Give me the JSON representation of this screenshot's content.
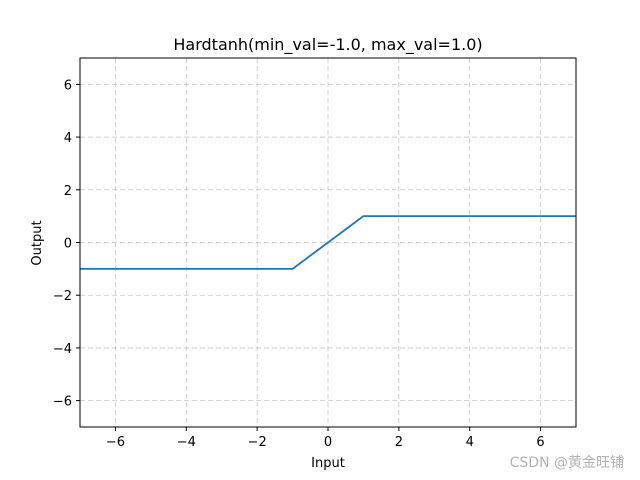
{
  "chart_data": {
    "type": "line",
    "title": "Hardtanh(min_val=-1.0, max_val=1.0)",
    "xlabel": "Input",
    "ylabel": "Output",
    "xlim": [
      -7,
      7
    ],
    "ylim": [
      -7,
      7
    ],
    "xticks": [
      -6,
      -4,
      -2,
      0,
      2,
      4,
      6
    ],
    "yticks": [
      -6,
      -4,
      -2,
      0,
      2,
      4,
      6
    ],
    "tick_labels_x": [
      "−6",
      "−4",
      "−2",
      "0",
      "2",
      "4",
      "6"
    ],
    "tick_labels_y": [
      "−6",
      "−4",
      "−2",
      "0",
      "2",
      "4",
      "6"
    ],
    "grid": true,
    "series": [
      {
        "x": [
          -7,
          -1,
          1,
          7
        ],
        "y": [
          -1,
          -1,
          1,
          1
        ],
        "color": "#1f77b4"
      }
    ]
  },
  "watermark": "CSDN @黄金旺铺",
  "colors": {
    "line": "#1f77b4",
    "grid": "#b0b0b0",
    "axes": "#000000",
    "watermark": "#b3b3b3"
  }
}
